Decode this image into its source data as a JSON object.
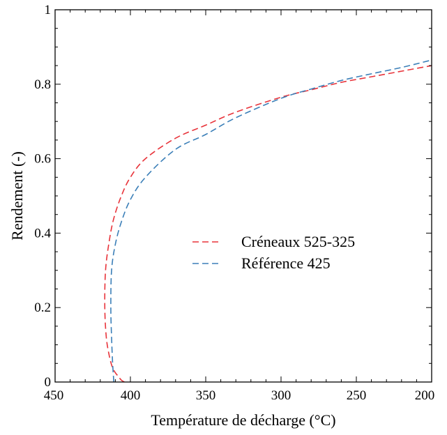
{
  "chart_data": {
    "type": "line",
    "title": "",
    "xlabel": "Température de décharge (°C)",
    "ylabel": "Rendement (-)",
    "xlim": [
      450,
      200
    ],
    "ylim": [
      0,
      1
    ],
    "x_reversed": true,
    "x_ticks": [
      450,
      400,
      350,
      300,
      250,
      200
    ],
    "x_tick_labels": [
      "450",
      "400",
      "350",
      "300",
      "250",
      "200"
    ],
    "y_ticks": [
      0,
      0.2,
      0.4,
      0.6,
      0.8,
      1
    ],
    "y_tick_labels": [
      "0",
      "0.2",
      "0.4",
      "0.6",
      "0.8",
      "1"
    ],
    "grid": false,
    "legend_position": "center-right",
    "series": [
      {
        "name": "Créneaux 525-325",
        "color": "#e8333a",
        "line_style": "dashed",
        "points": [
          [
            404,
            0.0
          ],
          [
            406,
            0.005
          ],
          [
            408,
            0.015
          ],
          [
            410,
            0.025
          ],
          [
            412,
            0.04
          ],
          [
            414,
            0.07
          ],
          [
            416,
            0.12
          ],
          [
            417,
            0.2
          ],
          [
            416.5,
            0.3
          ],
          [
            414,
            0.38
          ],
          [
            411,
            0.44
          ],
          [
            406,
            0.5
          ],
          [
            400,
            0.55
          ],
          [
            390,
            0.6
          ],
          [
            370,
            0.655
          ],
          [
            350,
            0.69
          ],
          [
            330,
            0.725
          ],
          [
            300,
            0.765
          ],
          [
            280,
            0.785
          ],
          [
            260,
            0.805
          ],
          [
            240,
            0.82
          ],
          [
            220,
            0.835
          ],
          [
            200,
            0.85
          ]
        ]
      },
      {
        "name": "Référence 425",
        "color": "#3b7fb8",
        "line_style": "dashed",
        "points": [
          [
            411,
            0.0
          ],
          [
            411.8,
            0.05
          ],
          [
            412.5,
            0.12
          ],
          [
            413,
            0.2
          ],
          [
            412.5,
            0.3
          ],
          [
            410,
            0.37
          ],
          [
            406,
            0.43
          ],
          [
            400,
            0.49
          ],
          [
            390,
            0.55
          ],
          [
            370,
            0.625
          ],
          [
            350,
            0.665
          ],
          [
            330,
            0.71
          ],
          [
            300,
            0.762
          ],
          [
            280,
            0.787
          ],
          [
            260,
            0.81
          ],
          [
            240,
            0.828
          ],
          [
            220,
            0.845
          ],
          [
            200,
            0.865
          ]
        ]
      }
    ]
  }
}
